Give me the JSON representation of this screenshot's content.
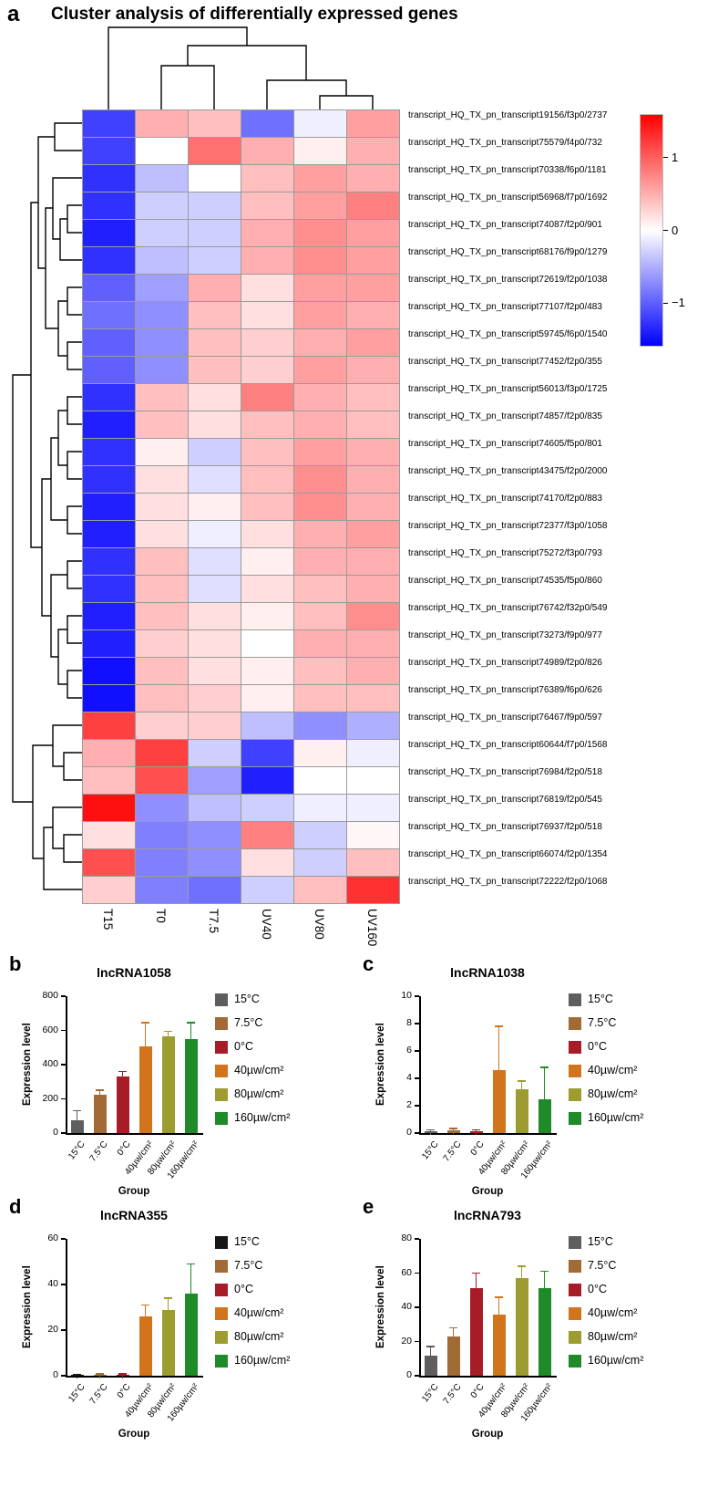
{
  "figure": {
    "panel_a_letter": "a",
    "title": "Cluster analysis of differentially expressed genes"
  },
  "chart_data": [
    {
      "type": "heatmap",
      "panel": "a",
      "title": "Cluster analysis of differentially expressed genes",
      "columns": [
        "T15",
        "T0",
        "T7.5",
        "UV40",
        "UV80",
        "UV160"
      ],
      "rows": [
        "transcript_HQ_TX_pn_transcript19156/f3p0/2737",
        "transcript_HQ_TX_pn_transcript75579/f4p0/732",
        "transcript_HQ_TX_pn_transcript70338/f6p0/1181",
        "transcript_HQ_TX_pn_transcript56968/f7p0/1692",
        "transcript_HQ_TX_pn_transcript74087/f2p0/901",
        "transcript_HQ_TX_pn_transcript68176/f9p0/1279",
        "transcript_HQ_TX_pn_transcript72619/f2p0/1038",
        "transcript_HQ_TX_pn_transcript77107/f2p0/483",
        "transcript_HQ_TX_pn_transcript59745/f6p0/1540",
        "transcript_HQ_TX_pn_transcript77452/f2p0/355",
        "transcript_HQ_TX_pn_transcript56013/f3p0/1725",
        "transcript_HQ_TX_pn_transcript74857/f2p0/835",
        "transcript_HQ_TX_pn_transcript74605/f5p0/801",
        "transcript_HQ_TX_pn_transcript43475/f2p0/2000",
        "transcript_HQ_TX_pn_transcript74170/f2p0/883",
        "transcript_HQ_TX_pn_transcript72377/f3p0/1058",
        "transcript_HQ_TX_pn_transcript75272/f3p0/793",
        "transcript_HQ_TX_pn_transcript74535/f5p0/860",
        "transcript_HQ_TX_pn_transcript76742/f32p0/549",
        "transcript_HQ_TX_pn_transcript73273/f9p0/977",
        "transcript_HQ_TX_pn_transcript74989/f2p0/826",
        "transcript_HQ_TX_pn_transcript76389/f6p0/626",
        "transcript_HQ_TX_pn_transcript76467/f9p0/597",
        "transcript_HQ_TX_pn_transcript60644/f7p0/1568",
        "transcript_HQ_TX_pn_transcript76984/f2p0/518",
        "transcript_HQ_TX_pn_transcript76819/f2p0/545",
        "transcript_HQ_TX_pn_transcript76937/f2p0/518",
        "transcript_HQ_TX_pn_transcript66074/f2p0/1354",
        "transcript_HQ_TX_pn_transcript72222/f2p0/1068"
      ],
      "values": [
        [
          -1.2,
          0.5,
          0.4,
          -0.9,
          -0.1,
          0.6
        ],
        [
          -1.2,
          0.0,
          0.9,
          0.5,
          0.1,
          0.5
        ],
        [
          -1.3,
          -0.4,
          0.0,
          0.4,
          0.6,
          0.5
        ],
        [
          -1.3,
          -0.3,
          -0.3,
          0.4,
          0.6,
          0.8
        ],
        [
          -1.4,
          -0.3,
          -0.3,
          0.5,
          0.7,
          0.6
        ],
        [
          -1.3,
          -0.4,
          -0.3,
          0.5,
          0.7,
          0.6
        ],
        [
          -1.0,
          -0.6,
          0.5,
          0.2,
          0.6,
          0.6
        ],
        [
          -0.9,
          -0.7,
          0.4,
          0.2,
          0.6,
          0.5
        ],
        [
          -1.0,
          -0.7,
          0.4,
          0.3,
          0.5,
          0.6
        ],
        [
          -1.0,
          -0.7,
          0.4,
          0.3,
          0.6,
          0.5
        ],
        [
          -1.3,
          0.4,
          0.2,
          0.8,
          0.5,
          0.4
        ],
        [
          -1.4,
          0.4,
          0.2,
          0.4,
          0.5,
          0.4
        ],
        [
          -1.3,
          0.1,
          -0.3,
          0.4,
          0.6,
          0.5
        ],
        [
          -1.3,
          0.2,
          -0.2,
          0.4,
          0.7,
          0.5
        ],
        [
          -1.4,
          0.2,
          0.1,
          0.4,
          0.7,
          0.5
        ],
        [
          -1.4,
          0.2,
          -0.1,
          0.2,
          0.5,
          0.6
        ],
        [
          -1.3,
          0.4,
          -0.2,
          0.1,
          0.5,
          0.5
        ],
        [
          -1.3,
          0.4,
          -0.2,
          0.2,
          0.4,
          0.5
        ],
        [
          -1.4,
          0.4,
          0.2,
          0.1,
          0.4,
          0.7
        ],
        [
          -1.4,
          0.3,
          0.2,
          0.0,
          0.5,
          0.5
        ],
        [
          -1.5,
          0.4,
          0.2,
          0.1,
          0.4,
          0.5
        ],
        [
          -1.5,
          0.4,
          0.3,
          0.1,
          0.4,
          0.4
        ],
        [
          1.2,
          0.3,
          0.3,
          -0.4,
          -0.7,
          -0.5
        ],
        [
          0.5,
          1.2,
          -0.3,
          -1.2,
          0.1,
          -0.1
        ],
        [
          0.4,
          1.1,
          -0.6,
          -1.4,
          0.0,
          0.0
        ],
        [
          1.5,
          -0.7,
          -0.4,
          -0.3,
          -0.1,
          -0.1
        ],
        [
          0.2,
          -0.8,
          -0.7,
          0.8,
          -0.3,
          0.05
        ],
        [
          1.1,
          -0.8,
          -0.7,
          0.2,
          -0.3,
          0.4
        ],
        [
          0.3,
          -0.8,
          -0.9,
          -0.3,
          0.4,
          1.3
        ]
      ],
      "scale": {
        "max": 1.6,
        "min": -1.6,
        "tick_values": [
          1,
          0,
          -1
        ],
        "tick_labels": [
          "1",
          "0",
          "−1"
        ],
        "high": "#ff0000",
        "mid": "#ffffff",
        "low": "#0000ff"
      }
    },
    {
      "type": "bar",
      "panel": "b",
      "title": "lncRNA1058",
      "xlabel": "Group",
      "ylabel": "Expression level",
      "ylim": [
        0,
        800
      ],
      "yticks": [
        0,
        200,
        400,
        600,
        800
      ],
      "categories": [
        "15°C",
        "7.5°C",
        "0°C",
        "40µw/cm²",
        "80µw/cm²",
        "160µw/cm²"
      ],
      "legend_labels": [
        "15°C",
        "7.5°C",
        "0°C",
        "40µw/cm²",
        "80µw/cm²",
        "160µw/cm²"
      ],
      "values": [
        75,
        225,
        330,
        505,
        565,
        550
      ],
      "errors": [
        55,
        25,
        30,
        140,
        30,
        95
      ],
      "colors": [
        "#5e5e5e",
        "#a26a34",
        "#a81c28",
        "#d2741c",
        "#9c9c30",
        "#1f8b28"
      ]
    },
    {
      "type": "bar",
      "panel": "c",
      "title": "lncRNA1038",
      "xlabel": "Group",
      "ylabel": "Expression level",
      "ylim": [
        0,
        10
      ],
      "yticks": [
        0,
        2,
        4,
        6,
        8,
        10
      ],
      "categories": [
        "15°C",
        "7.5°C",
        "0°C",
        "40µw/cm²",
        "80µw/cm²",
        "160µw/cm²"
      ],
      "legend_labels": [
        "15°C",
        "7.5°C",
        "0°C",
        "40µw/cm²",
        "80µw/cm²",
        "160µw/cm²"
      ],
      "values": [
        0.15,
        0.2,
        0.12,
        4.6,
        3.2,
        2.5
      ],
      "errors": [
        0.1,
        0.15,
        0.1,
        3.2,
        0.6,
        2.3
      ],
      "colors": [
        "#5e5e5e",
        "#a26a34",
        "#a81c28",
        "#d2741c",
        "#9c9c30",
        "#1f8b28"
      ]
    },
    {
      "type": "bar",
      "panel": "d",
      "title": "lncRNA355",
      "xlabel": "Group",
      "ylabel": "Expression level",
      "ylim": [
        0,
        60
      ],
      "yticks": [
        0,
        20,
        40,
        60
      ],
      "categories": [
        "15°C",
        "7.5°C",
        "0°C",
        "40µw/cm²",
        "80µw/cm²",
        "160µw/cm²"
      ],
      "legend_labels": [
        "15°C",
        "7.5°C",
        "0°C",
        "40µw/cm²",
        "80µw/cm²",
        "160µw/cm²"
      ],
      "values": [
        0.3,
        0.6,
        0.5,
        26,
        29,
        36
      ],
      "errors": [
        0.2,
        0.3,
        0.3,
        5,
        5,
        13
      ],
      "colors": [
        "#161616",
        "#a26a34",
        "#a81c28",
        "#d2741c",
        "#9c9c30",
        "#1f8b28"
      ]
    },
    {
      "type": "bar",
      "panel": "e",
      "title": "lncRNA793",
      "xlabel": "Group",
      "ylabel": "Expression level",
      "ylim": [
        0,
        80
      ],
      "yticks": [
        0,
        20,
        40,
        60,
        80
      ],
      "categories": [
        "15°C",
        "7.5°C",
        "0°C",
        "40µw/cm²",
        "80µw/cm²",
        "160µw/cm²"
      ],
      "legend_labels": [
        "15°C",
        "7.5°C",
        "0°C",
        "40µw/cm²",
        "80µw/cm²",
        "160µw/cm²"
      ],
      "values": [
        12,
        23,
        51,
        36,
        57,
        51
      ],
      "errors": [
        5,
        5,
        9,
        10,
        7,
        10
      ],
      "colors": [
        "#5e5e5e",
        "#a26a34",
        "#a81c28",
        "#d2741c",
        "#9c9c30",
        "#1f8b28"
      ]
    }
  ]
}
